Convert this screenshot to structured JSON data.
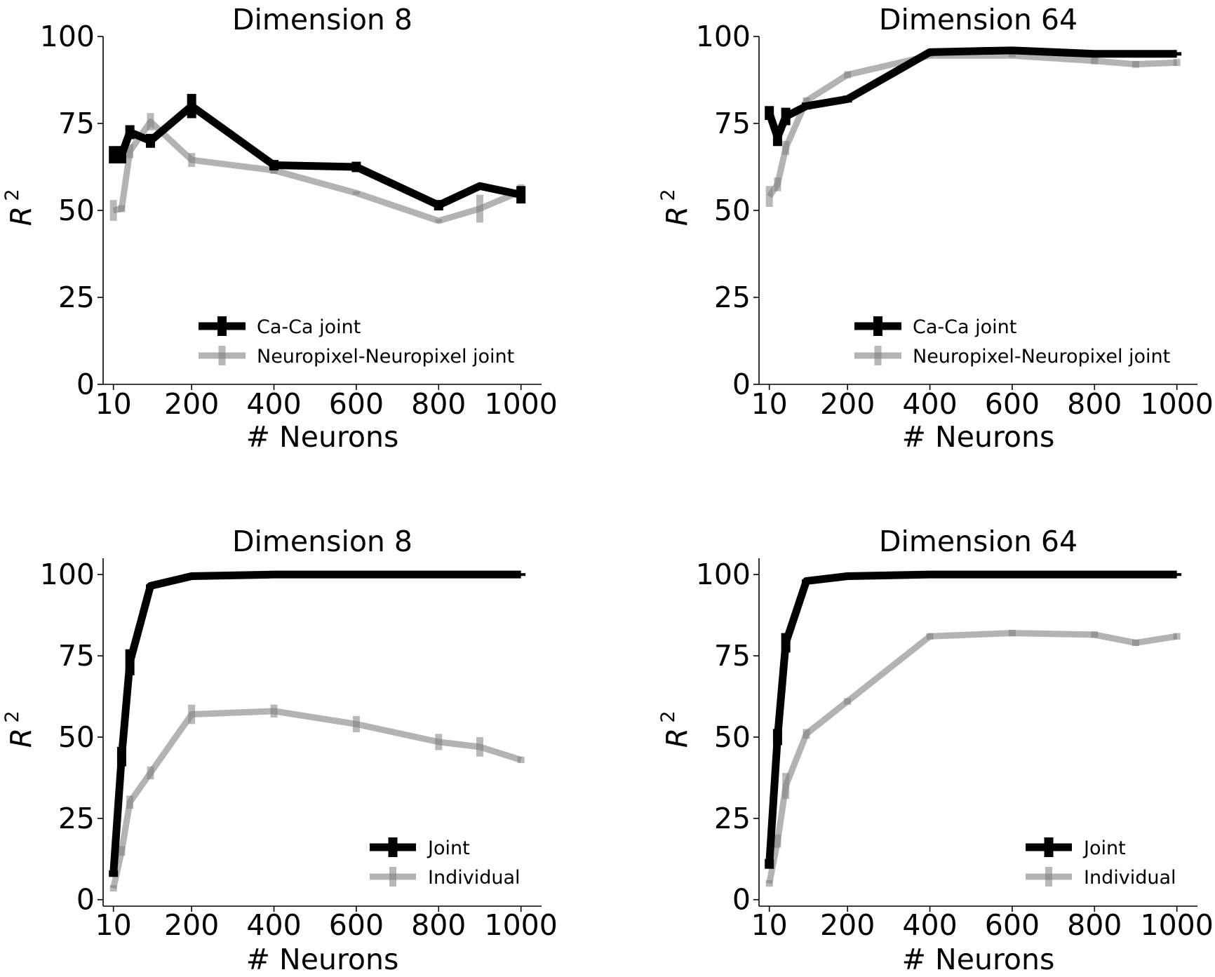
{
  "figure": {
    "layout": "2x2 grid of line charts"
  },
  "colors": {
    "joint": "#000000",
    "individual": "#b3b3b3",
    "individual_errorbar": "#808080",
    "axis": "#000000"
  },
  "chart_data": [
    {
      "type": "line",
      "title": "Dimension 8",
      "xlabel": "# Neurons",
      "ylabel": "R",
      "ylabel_superscript": "2",
      "x": [
        10,
        30,
        50,
        100,
        200,
        400,
        600,
        800,
        900,
        1000
      ],
      "xticks": [
        10,
        200,
        400,
        600,
        800,
        1000
      ],
      "xtick_labels": [
        "10",
        "200",
        "400",
        "600",
        "800",
        "1000"
      ],
      "yticks": [
        0,
        25,
        50,
        75,
        100
      ],
      "ytick_labels": [
        "0",
        "25",
        "50",
        "75",
        "100"
      ],
      "xlim": [
        -15,
        1050
      ],
      "ylim": [
        0,
        100
      ],
      "legend_position": "lower-center",
      "series": [
        {
          "name": "Ca-Ca joint",
          "color": "#000000",
          "values": [
            66,
            66,
            72.5,
            70,
            80,
            63,
            62.5,
            51.5,
            57,
            54.5
          ],
          "errors": [
            2.5,
            2.5,
            2,
            2,
            3.5,
            1.5,
            1.5,
            1.5,
            0.5,
            2.5
          ]
        },
        {
          "name": "Neuropixel-Neuropixel joint",
          "color": "#b3b3b3",
          "values": [
            50,
            50.5,
            67,
            75.5,
            64.5,
            61.5,
            55,
            47,
            50.5,
            55.5
          ],
          "errors": [
            3,
            1,
            2,
            2.5,
            2,
            1,
            0.5,
            0.5,
            4,
            2
          ]
        }
      ]
    },
    {
      "type": "line",
      "title": "Dimension 64",
      "xlabel": "# Neurons",
      "ylabel": "R",
      "ylabel_superscript": "2",
      "x": [
        10,
        30,
        50,
        100,
        200,
        400,
        600,
        800,
        900,
        1000
      ],
      "xticks": [
        10,
        200,
        400,
        600,
        800,
        1000
      ],
      "xtick_labels": [
        "10",
        "200",
        "400",
        "600",
        "800",
        "1000"
      ],
      "yticks": [
        0,
        25,
        50,
        75,
        100
      ],
      "ytick_labels": [
        "0",
        "25",
        "50",
        "75",
        "100"
      ],
      "xlim": [
        -15,
        1050
      ],
      "ylim": [
        0,
        100
      ],
      "legend_position": "lower-center",
      "series": [
        {
          "name": "Ca-Ca joint",
          "color": "#000000",
          "values": [
            78,
            71,
            77,
            80,
            82,
            95.5,
            96,
            95,
            95,
            95
          ],
          "errors": [
            2,
            2.5,
            2.5,
            1,
            1,
            0.5,
            0.5,
            0.5,
            0.5,
            0.5
          ]
        },
        {
          "name": "Neuropixel-Neuropixel joint",
          "color": "#b3b3b3",
          "values": [
            54,
            57.5,
            68,
            81.5,
            89,
            94.5,
            94.5,
            93,
            92,
            92.5
          ],
          "errors": [
            3,
            2,
            2,
            1,
            1,
            0.5,
            0.5,
            1,
            1,
            1
          ]
        }
      ]
    },
    {
      "type": "line",
      "title": "Dimension 8",
      "xlabel": "# Neurons",
      "ylabel": "R",
      "ylabel_superscript": "2",
      "x": [
        10,
        30,
        50,
        100,
        200,
        400,
        600,
        800,
        900,
        1000
      ],
      "xticks": [
        10,
        200,
        400,
        600,
        800,
        1000
      ],
      "xtick_labels": [
        "10",
        "200",
        "400",
        "600",
        "800",
        "1000"
      ],
      "yticks": [
        0,
        25,
        50,
        75,
        100
      ],
      "ytick_labels": [
        "0",
        "25",
        "50",
        "75",
        "100"
      ],
      "xlim": [
        -15,
        1050
      ],
      "ylim": [
        -2,
        105
      ],
      "legend_position": "lower-right",
      "series": [
        {
          "name": "Joint",
          "color": "#000000",
          "values": [
            8,
            44,
            73,
            96.5,
            99.5,
            100,
            100,
            100,
            100,
            100
          ],
          "errors": [
            1,
            3,
            4,
            0.5,
            0.3,
            0.2,
            0.2,
            0.2,
            0.2,
            0.2
          ]
        },
        {
          "name": "Individual",
          "color": "#b3b3b3",
          "values": [
            3.5,
            15,
            30,
            39,
            57,
            58,
            54,
            48.5,
            47,
            43
          ],
          "errors": [
            1,
            1.5,
            2,
            2,
            3,
            2,
            2.5,
            2.5,
            3,
            1
          ]
        }
      ]
    },
    {
      "type": "line",
      "title": "Dimension 64",
      "xlabel": "# Neurons",
      "ylabel": "R",
      "ylabel_superscript": "2",
      "x": [
        10,
        30,
        50,
        100,
        200,
        400,
        600,
        800,
        900,
        1000
      ],
      "xticks": [
        10,
        200,
        400,
        600,
        800,
        1000
      ],
      "xtick_labels": [
        "10",
        "200",
        "400",
        "600",
        "800",
        "1000"
      ],
      "yticks": [
        0,
        25,
        50,
        75,
        100
      ],
      "ytick_labels": [
        "0",
        "25",
        "50",
        "75",
        "100"
      ],
      "xlim": [
        -15,
        1050
      ],
      "ylim": [
        -2,
        105
      ],
      "legend_position": "lower-right",
      "series": [
        {
          "name": "Joint",
          "color": "#000000",
          "values": [
            11,
            50,
            79,
            98,
            99.5,
            100,
            100,
            100,
            100,
            100
          ],
          "errors": [
            1.5,
            2.5,
            3,
            0.5,
            0.3,
            0.2,
            0.2,
            0.2,
            0.2,
            0.2
          ]
        },
        {
          "name": "Individual",
          "color": "#b3b3b3",
          "values": [
            5,
            18,
            35,
            51,
            61,
            81,
            82,
            81.5,
            79,
            81
          ],
          "errors": [
            1,
            2,
            4,
            1.5,
            1,
            1,
            1,
            1,
            1,
            1
          ]
        }
      ]
    }
  ]
}
